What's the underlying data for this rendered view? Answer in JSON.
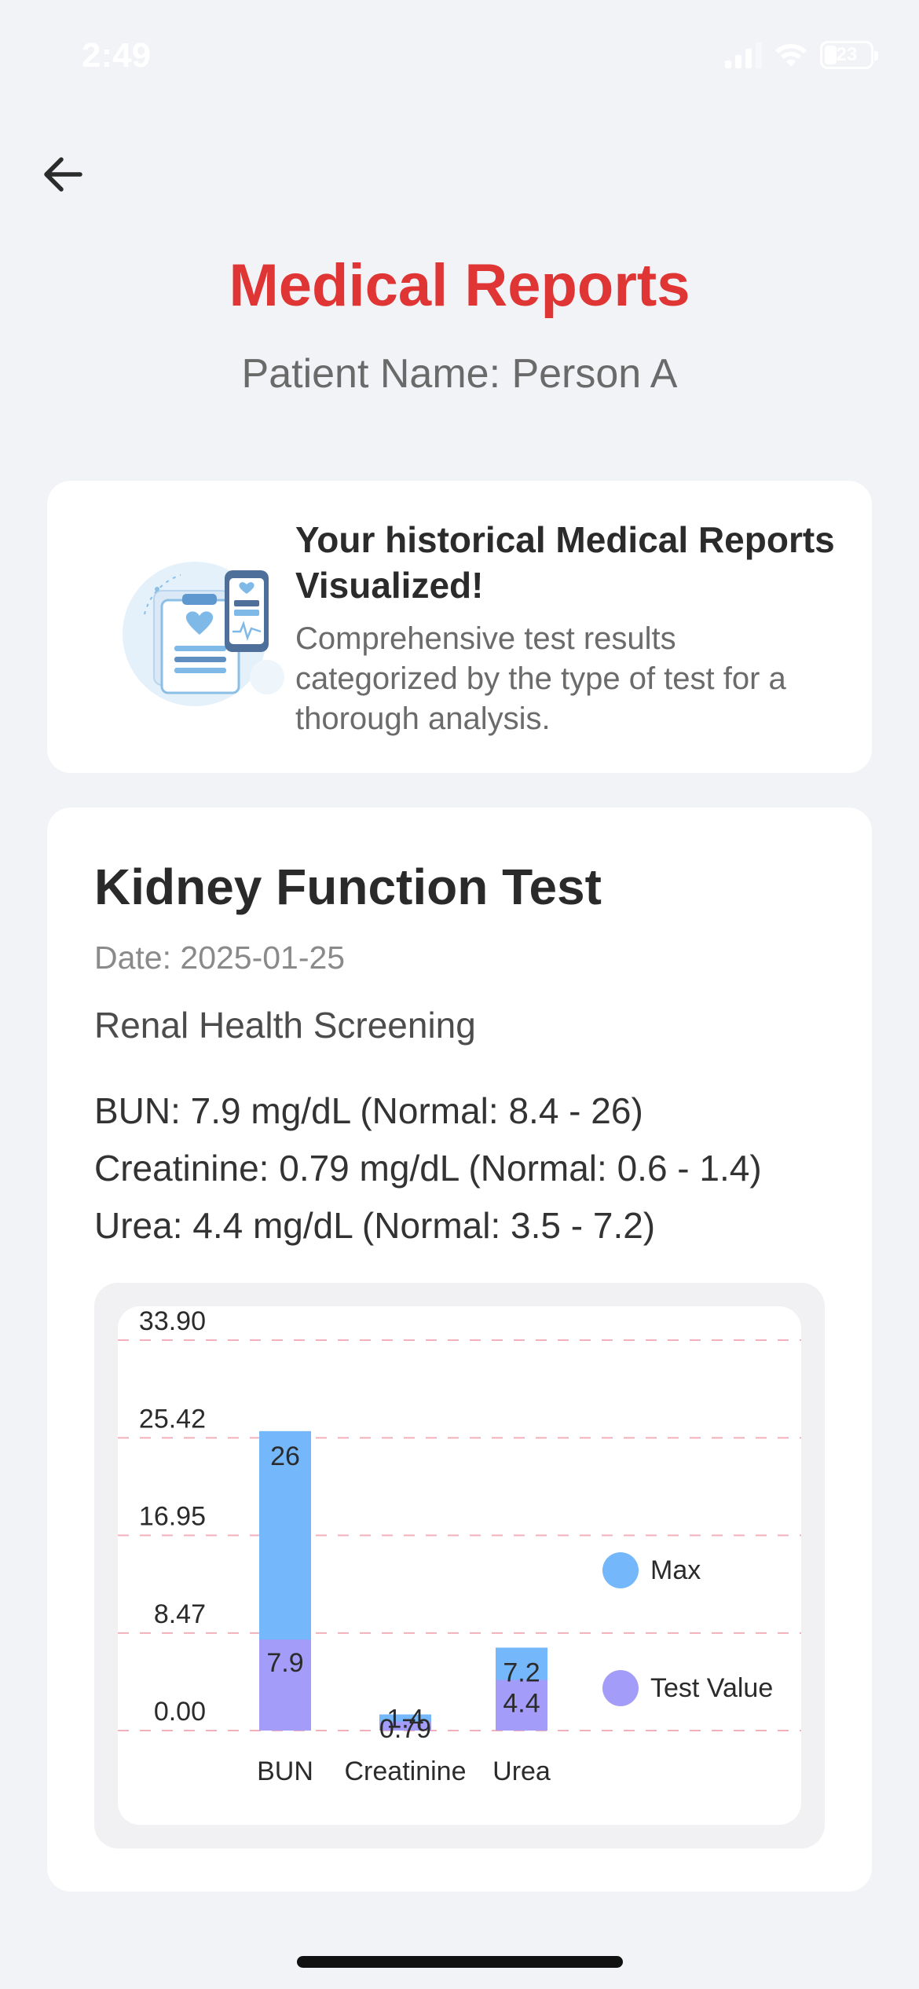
{
  "status_bar": {
    "time": "2:49",
    "battery": "23"
  },
  "header": {
    "title": "Medical Reports",
    "patient": "Patient Name: Person A"
  },
  "intro": {
    "heading": "Your historical Medical Reports Visualized!",
    "description": "Comprehensive test results categorized by the type of test for a thorough analysis."
  },
  "report": {
    "title": "Kidney Function Test",
    "date": "Date: 2025-01-25",
    "description": "Renal Health Screening",
    "results": [
      "BUN: 7.9 mg/dL (Normal: 8.4 - 26)",
      "Creatinine: 0.79 mg/dL (Normal: 0.6 - 1.4)",
      "Urea: 4.4 mg/dL (Normal: 3.5 - 7.2)"
    ]
  },
  "colors": {
    "accent": "#e03535",
    "max": "#74b7fb",
    "test_value": "#a39cf8",
    "grid": "#f3b0bb"
  },
  "chart_data": {
    "type": "bar",
    "categories": [
      "BUN",
      "Creatinine",
      "Urea"
    ],
    "series": [
      {
        "name": "Max",
        "values": [
          26,
          1.4,
          7.2
        ],
        "color": "#74b7fb"
      },
      {
        "name": "Test Value",
        "values": [
          7.9,
          0.79,
          4.4
        ],
        "color": "#a39cf8"
      }
    ],
    "y_ticks": [
      "0.00",
      "8.47",
      "16.95",
      "25.42",
      "33.90"
    ],
    "ylim": [
      0,
      33.9
    ],
    "legend_position": "right",
    "grid": true
  }
}
